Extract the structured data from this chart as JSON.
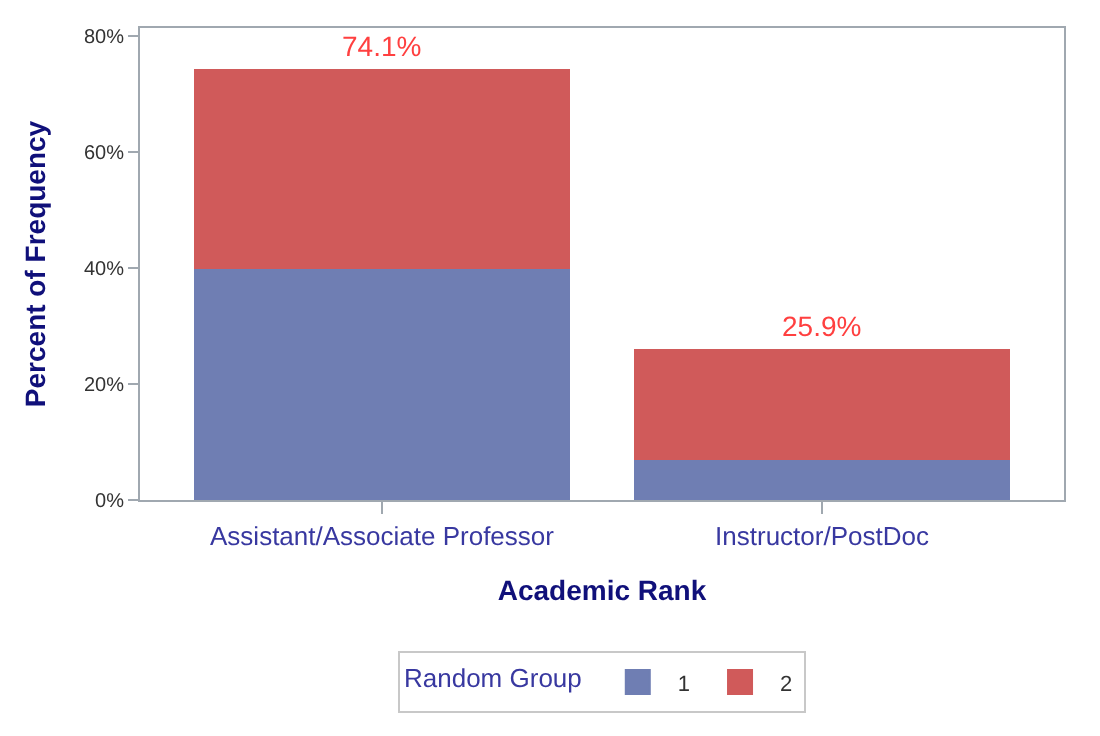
{
  "chart_data": {
    "type": "bar",
    "stacked": true,
    "xlabel": "Academic Rank",
    "ylabel": "Percent of Frequency",
    "legend_title": "Random Group",
    "legend": "bottom",
    "categories": [
      "Assistant/Associate Professor",
      "Instructor/PostDoc"
    ],
    "series": [
      {
        "name": "1",
        "color": "#6f7eb3",
        "values": [
          40,
          7
        ]
      },
      {
        "name": "2",
        "color": "#d05a5a",
        "values": [
          34.1,
          18.9
        ]
      }
    ],
    "totals": [
      "74.1%",
      "25.9%"
    ],
    "ylim": [
      0,
      81.4
    ],
    "yticks": [
      {
        "value": 0,
        "label": "0%"
      },
      {
        "value": 20,
        "label": "20%"
      },
      {
        "value": 40,
        "label": "40%"
      },
      {
        "value": 60,
        "label": "60%"
      },
      {
        "value": 80,
        "label": "80%"
      }
    ]
  }
}
